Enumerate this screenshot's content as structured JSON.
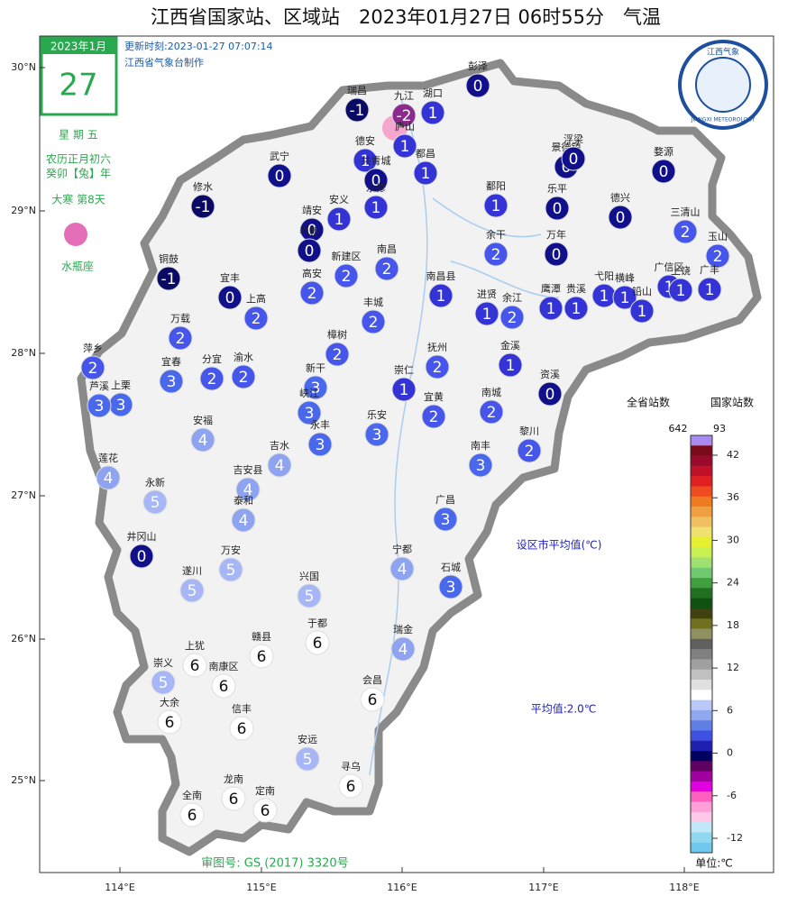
{
  "header": {
    "title": "江西省国家站、区域站　2023年01月27日 06时55分　气温",
    "updated": "更新时刻:2023-01-27 07:07:14",
    "producer": "江西省气象台制作"
  },
  "calendar": {
    "month": "2023年1月",
    "day": "27",
    "weekday": "星 期 五",
    "lunar": "农历正月初六",
    "year": "癸卯【兔】年",
    "term": "大寒 第8天",
    "zodiac": "水瓶座"
  },
  "logo": {
    "name": "江西气象",
    "en": "JIANGXI METEOROLOGY"
  },
  "map": {
    "lat_ticks": [
      "30°N",
      "29°N",
      "28°N",
      "27°N",
      "26°N",
      "25°N"
    ],
    "lon_ticks": [
      "114°E",
      "115°E",
      "116°E",
      "117°E",
      "118°E"
    ],
    "stations": [
      {
        "name": "彭泽",
        "value": 0
      },
      {
        "name": "瑞昌",
        "value": -1
      },
      {
        "name": "九江",
        "value": -2
      },
      {
        "name": "湖口",
        "value": 1
      },
      {
        "name": "庐山",
        "value": 1
      },
      {
        "name": "德安",
        "value": 1
      },
      {
        "name": "共青城",
        "value": 0
      },
      {
        "name": "都昌",
        "value": 1
      },
      {
        "name": "武宁",
        "value": 0
      },
      {
        "name": "修水",
        "value": -1
      },
      {
        "name": "永修",
        "value": 1
      },
      {
        "name": "靖安",
        "value": 0
      },
      {
        "name": "安义",
        "value": 1
      },
      {
        "name": "奉新",
        "value": 0
      },
      {
        "name": "鄱阳",
        "value": 1
      },
      {
        "name": "景德镇",
        "value": 0
      },
      {
        "name": "浮梁",
        "value": 0
      },
      {
        "name": "乐平",
        "value": 0
      },
      {
        "name": "婺源",
        "value": 0
      },
      {
        "name": "德兴",
        "value": 0
      },
      {
        "name": "铜鼓",
        "value": -1
      },
      {
        "name": "宜丰",
        "value": 0
      },
      {
        "name": "高安",
        "value": 2
      },
      {
        "name": "新建区",
        "value": 2
      },
      {
        "name": "南昌",
        "value": 2
      },
      {
        "name": "南昌县",
        "value": 1
      },
      {
        "name": "余干",
        "value": 2
      },
      {
        "name": "万年",
        "value": 0
      },
      {
        "name": "三清山",
        "value": 2
      },
      {
        "name": "玉山",
        "value": 2
      },
      {
        "name": "上高",
        "value": 2
      },
      {
        "name": "丰城",
        "value": 2
      },
      {
        "name": "进贤",
        "value": 1
      },
      {
        "name": "余江",
        "value": 2
      },
      {
        "name": "鹰潭",
        "value": 1
      },
      {
        "name": "贵溪",
        "value": 1
      },
      {
        "name": "弋阳",
        "value": 1
      },
      {
        "name": "横峰",
        "value": 1
      },
      {
        "name": "铅山",
        "value": 1
      },
      {
        "name": "广信区",
        "value": 1
      },
      {
        "name": "广丰",
        "value": 1
      },
      {
        "name": "上饶",
        "value": 1
      },
      {
        "name": "万载",
        "value": 2
      },
      {
        "name": "樟树",
        "value": 2
      },
      {
        "name": "抚州",
        "value": 2
      },
      {
        "name": "金溪",
        "value": 1
      },
      {
        "name": "资溪",
        "value": 0
      },
      {
        "name": "萍乡",
        "value": 2
      },
      {
        "name": "上栗",
        "value": 3
      },
      {
        "name": "宜春",
        "value": 3
      },
      {
        "name": "分宜",
        "value": 2
      },
      {
        "name": "渝水",
        "value": 2
      },
      {
        "name": "新干",
        "value": 3
      },
      {
        "name": "崇仁",
        "value": 1
      },
      {
        "name": "宜黄",
        "value": 2
      },
      {
        "name": "南城",
        "value": 2
      },
      {
        "name": "芦溪",
        "value": 3
      },
      {
        "name": "峡江",
        "value": 3
      },
      {
        "name": "永丰",
        "value": 3
      },
      {
        "name": "乐安",
        "value": 3
      },
      {
        "name": "黎川",
        "value": 2
      },
      {
        "name": "安福",
        "value": 4
      },
      {
        "name": "吉水",
        "value": 4
      },
      {
        "name": "南丰",
        "value": 3
      },
      {
        "name": "莲花",
        "value": 4
      },
      {
        "name": "永新",
        "value": 5
      },
      {
        "name": "吉安县",
        "value": 4
      },
      {
        "name": "泰和",
        "value": 4
      },
      {
        "name": "广昌",
        "value": 3
      },
      {
        "name": "井冈山",
        "value": 0
      },
      {
        "name": "遂川",
        "value": 5
      },
      {
        "name": "万安",
        "value": 5
      },
      {
        "name": "宁都",
        "value": 4
      },
      {
        "name": "石城",
        "value": 3
      },
      {
        "name": "兴国",
        "value": 5
      },
      {
        "name": "于都",
        "value": 6
      },
      {
        "name": "赣县",
        "value": 6
      },
      {
        "name": "瑞金",
        "value": 4
      },
      {
        "name": "上犹",
        "value": 6
      },
      {
        "name": "崇义",
        "value": 5
      },
      {
        "name": "南康区",
        "value": 6
      },
      {
        "name": "会昌",
        "value": 6
      },
      {
        "name": "大余",
        "value": 6
      },
      {
        "name": "信丰",
        "value": 6
      },
      {
        "name": "安远",
        "value": 5
      },
      {
        "name": "寻乌",
        "value": 6
      },
      {
        "name": "龙南",
        "value": 6
      },
      {
        "name": "全南",
        "value": 6
      },
      {
        "name": "定南",
        "value": 6
      }
    ],
    "note_city_avg": "设区市平均值(℃)",
    "average": "平均值:2.0℃",
    "approval": "审图号: GS (2017) 3320号"
  },
  "legend": {
    "province_label": "全省站数",
    "province_count": 642,
    "national_label": "国家站数",
    "national_count": 93,
    "ticks": [
      42,
      36,
      30,
      24,
      18,
      12,
      6,
      0,
      -6,
      -12
    ],
    "unit": "单位:℃"
  }
}
